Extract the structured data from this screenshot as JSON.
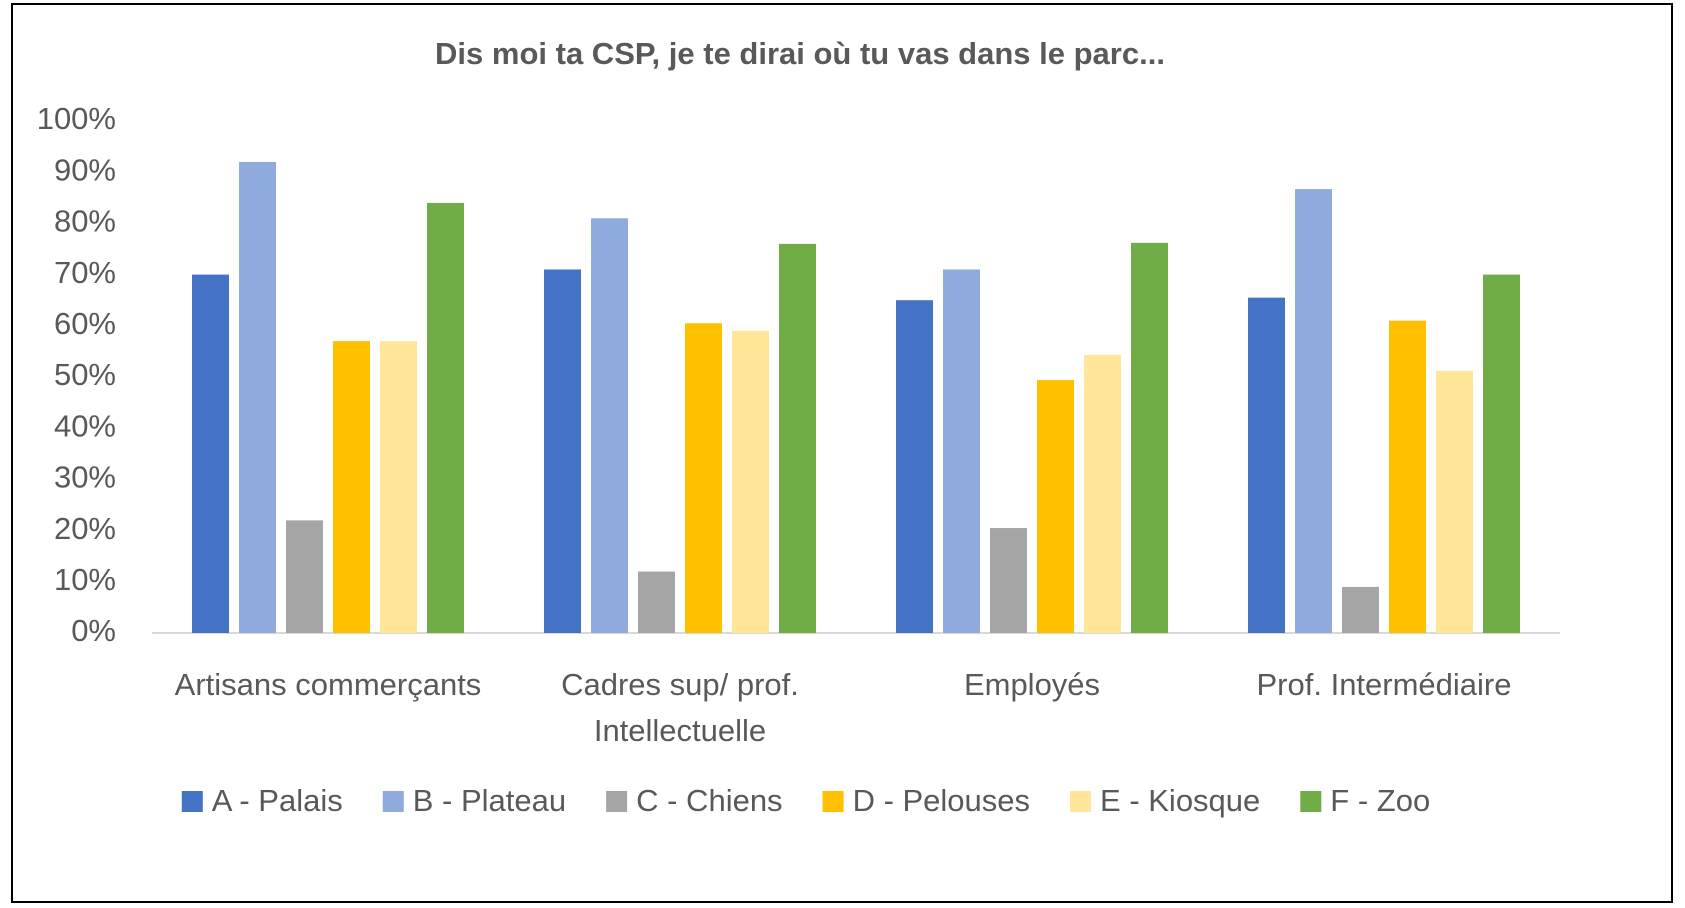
{
  "chart_data": {
    "type": "bar",
    "title": "Dis moi ta CSP, je te dirai où tu vas dans le parc...",
    "categories": [
      "Artisans commerçants",
      "Cadres sup/ prof. Intellectuelle",
      "Employés",
      "Prof. Intermédiaire"
    ],
    "series": [
      {
        "name": "A - Palais",
        "color": "#4472c4",
        "values": [
          70,
          71,
          65,
          65.5
        ]
      },
      {
        "name": "B - Plateau",
        "color": "#8faadc",
        "values": [
          92,
          81,
          71,
          86.7
        ]
      },
      {
        "name": "C - Chiens",
        "color": "#a5a5a5",
        "values": [
          22,
          12,
          20.5,
          9
        ]
      },
      {
        "name": "D - Pelouses",
        "color": "#ffc000",
        "values": [
          57,
          60.5,
          49.4,
          61
        ]
      },
      {
        "name": "E - Kiosque",
        "color": "#ffe699",
        "values": [
          57,
          59,
          54.3,
          51.2
        ]
      },
      {
        "name": "F - Zoo",
        "color": "#70ad47",
        "values": [
          84,
          76,
          76.2,
          70
        ]
      }
    ],
    "ylim": [
      0,
      100
    ],
    "yticks": [
      {
        "value": 0,
        "label": "0%"
      },
      {
        "value": 10,
        "label": "10%"
      },
      {
        "value": 20,
        "label": "20%"
      },
      {
        "value": 30,
        "label": "30%"
      },
      {
        "value": 40,
        "label": "40%"
      },
      {
        "value": 50,
        "label": "50%"
      },
      {
        "value": 60,
        "label": "60%"
      },
      {
        "value": 70,
        "label": "70%"
      },
      {
        "value": 80,
        "label": "80%"
      },
      {
        "value": 90,
        "label": "90%"
      },
      {
        "value": 100,
        "label": "100%"
      }
    ],
    "grid": false,
    "legend": "bottom"
  }
}
